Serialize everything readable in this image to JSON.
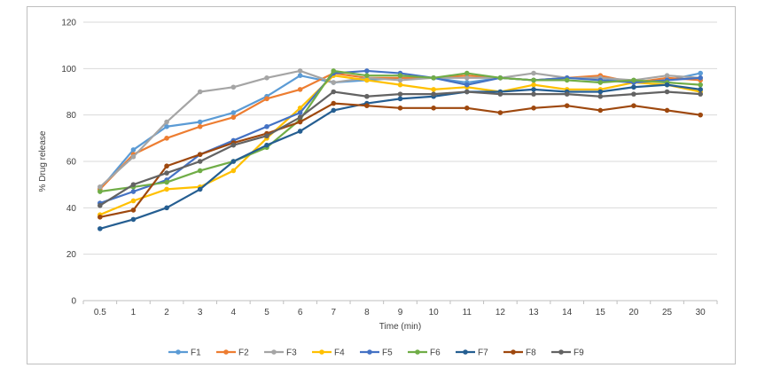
{
  "chart_data": {
    "type": "line",
    "title": "",
    "xlabel": "Time (min)",
    "ylabel": "% Drug release",
    "categories": [
      "0.5",
      "1",
      "2",
      "3",
      "4",
      "5",
      "6",
      "7",
      "8",
      "9",
      "10",
      "11",
      "12",
      "13",
      "14",
      "15",
      "20",
      "25",
      "30"
    ],
    "ylim": [
      0,
      120
    ],
    "yticks": [
      "0",
      "20",
      "40",
      "60",
      "80",
      "100",
      "120"
    ],
    "grid": "horizontal",
    "legend": "bottom",
    "series": [
      {
        "name": "F1",
        "color": "#5b9bd5",
        "values": [
          48,
          65,
          75,
          77,
          81,
          88,
          97,
          94,
          95,
          96,
          96,
          94,
          96,
          95,
          96,
          96,
          94,
          95,
          98
        ]
      },
      {
        "name": "F2",
        "color": "#ed7d31",
        "values": [
          48,
          63,
          70,
          75,
          79,
          87,
          91,
          98,
          96,
          96,
          96,
          97,
          96,
          95,
          96,
          97,
          94,
          96,
          95
        ]
      },
      {
        "name": "F3",
        "color": "#a5a5a5",
        "values": [
          49,
          62,
          77,
          90,
          92,
          96,
          99,
          94,
          96,
          95,
          96,
          96,
          96,
          98,
          96,
          96,
          95,
          97,
          96
        ]
      },
      {
        "name": "F4",
        "color": "#ffc000",
        "values": [
          37,
          43,
          48,
          49,
          56,
          70,
          83,
          97,
          95,
          93,
          91,
          92,
          90,
          93,
          91,
          91,
          94,
          93,
          90
        ]
      },
      {
        "name": "F5",
        "color": "#4472c4",
        "values": [
          42,
          47,
          52,
          63,
          69,
          75,
          81,
          98,
          99,
          98,
          96,
          93,
          96,
          95,
          96,
          95,
          94,
          95,
          96
        ]
      },
      {
        "name": "F6",
        "color": "#70ad47",
        "values": [
          47,
          49,
          51,
          56,
          60,
          66,
          78,
          99,
          97,
          97,
          96,
          98,
          96,
          95,
          95,
          94,
          95,
          94,
          93
        ]
      },
      {
        "name": "F7",
        "color": "#255e91",
        "values": [
          31,
          35,
          40,
          48,
          60,
          67,
          73,
          82,
          85,
          87,
          88,
          90,
          90,
          91,
          90,
          90,
          92,
          93,
          91
        ]
      },
      {
        "name": "F8",
        "color": "#9e480e",
        "values": [
          36,
          39,
          58,
          63,
          68,
          72,
          77,
          85,
          84,
          83,
          83,
          83,
          81,
          83,
          84,
          82,
          84,
          82,
          80
        ]
      },
      {
        "name": "F9",
        "color": "#636363",
        "values": [
          41,
          50,
          55,
          60,
          67,
          71,
          79,
          90,
          88,
          89,
          89,
          90,
          89,
          89,
          89,
          88,
          89,
          90,
          89
        ]
      }
    ]
  }
}
